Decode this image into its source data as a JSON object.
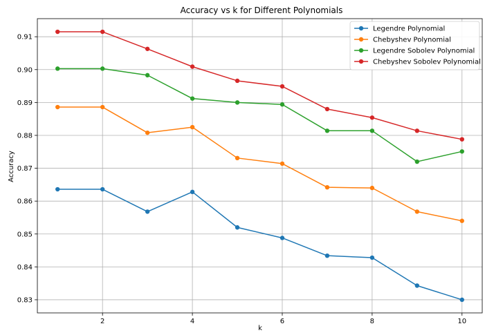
{
  "chart_data": {
    "type": "line",
    "title": "Accuracy vs k for Different Polynomials",
    "xlabel": "k",
    "ylabel": "Accuracy",
    "x": [
      1,
      2,
      3,
      4,
      5,
      6,
      7,
      8,
      9,
      10
    ],
    "xlim": [
      0.55,
      10.45
    ],
    "ylim": [
      0.826,
      0.9155
    ],
    "xticks": [
      2,
      4,
      6,
      8,
      10
    ],
    "yticks": [
      0.83,
      0.84,
      0.85,
      0.86,
      0.87,
      0.88,
      0.89,
      0.9,
      0.91
    ],
    "grid": true,
    "legend_position": "top-right",
    "series": [
      {
        "name": "Legendre Polynomial",
        "color": "#1f77b4",
        "values": [
          0.8636,
          0.8636,
          0.8568,
          0.8628,
          0.852,
          0.8488,
          0.8434,
          0.8428,
          0.8343,
          0.83
        ]
      },
      {
        "name": "Chebyshev Polynomial",
        "color": "#ff7f0e",
        "values": [
          0.8886,
          0.8886,
          0.8808,
          0.8825,
          0.8731,
          0.8714,
          0.8642,
          0.864,
          0.8568,
          0.854
        ]
      },
      {
        "name": "Legendre Sobolev Polynomial",
        "color": "#2ca02c",
        "values": [
          0.9003,
          0.9003,
          0.8983,
          0.8912,
          0.89,
          0.8894,
          0.8814,
          0.8814,
          0.872,
          0.8751
        ]
      },
      {
        "name": "Chebyshev Sobolev Polynomial",
        "color": "#d62728",
        "values": [
          0.9115,
          0.9115,
          0.9063,
          0.9009,
          0.8966,
          0.8949,
          0.888,
          0.8854,
          0.8814,
          0.8788
        ]
      }
    ]
  }
}
